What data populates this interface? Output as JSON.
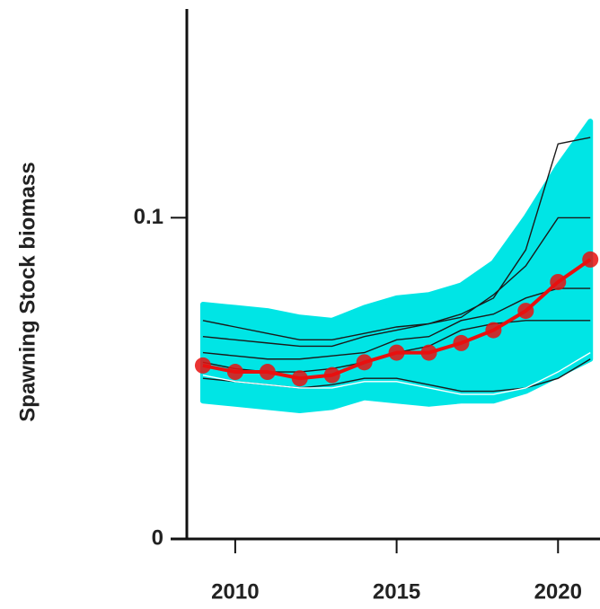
{
  "chart_data": {
    "type": "line",
    "y_label": "Spawning Stock biomass",
    "x": [
      2009,
      2010,
      2011,
      2012,
      2013,
      2014,
      2015,
      2016,
      2017,
      2018,
      2019,
      2020,
      2021
    ],
    "band": {
      "color": "#00e5e5",
      "upper": [
        0.073,
        0.072,
        0.071,
        0.069,
        0.068,
        0.072,
        0.075,
        0.076,
        0.079,
        0.086,
        0.1,
        0.116,
        0.13
      ],
      "lower": [
        0.043,
        0.042,
        0.041,
        0.04,
        0.041,
        0.044,
        0.043,
        0.042,
        0.043,
        0.043,
        0.046,
        0.051,
        0.056
      ]
    },
    "series": [
      {
        "color": "#1a1a1a",
        "values": [
          0.068,
          0.066,
          0.064,
          0.062,
          0.062,
          0.064,
          0.066,
          0.067,
          0.07,
          0.075,
          0.09,
          0.123,
          0.125
        ]
      },
      {
        "color": "#1a1a1a",
        "values": [
          0.063,
          0.062,
          0.061,
          0.06,
          0.06,
          0.063,
          0.065,
          0.067,
          0.069,
          0.076,
          0.085,
          0.1,
          0.1
        ]
      },
      {
        "color": "#1a1a1a",
        "values": [
          0.058,
          0.057,
          0.056,
          0.056,
          0.057,
          0.058,
          0.062,
          0.063,
          0.068,
          0.07,
          0.075,
          0.078,
          0.078
        ]
      },
      {
        "color": "#1a1a1a",
        "values": [
          0.055,
          0.053,
          0.052,
          0.052,
          0.053,
          0.055,
          0.058,
          0.06,
          0.065,
          0.067,
          0.068,
          0.068,
          0.068
        ]
      },
      {
        "color": "#1a1a1a",
        "values": [
          0.05,
          0.049,
          0.048,
          0.047,
          0.048,
          0.05,
          0.05,
          0.048,
          0.046,
          0.046,
          0.047,
          0.05,
          0.056
        ]
      },
      {
        "color": "#ffffff",
        "values": [
          0.051,
          0.049,
          0.048,
          0.047,
          0.047,
          0.049,
          0.049,
          0.047,
          0.045,
          0.045,
          0.047,
          0.052,
          0.058
        ]
      },
      {
        "color": "#e8100f",
        "markers": true,
        "values": [
          0.054,
          0.052,
          0.052,
          0.05,
          0.051,
          0.055,
          0.058,
          0.058,
          0.061,
          0.065,
          0.071,
          0.08,
          0.087
        ]
      }
    ],
    "xlim": [
      2008,
      2021.3
    ],
    "xticks": [
      2010,
      2015,
      2020
    ],
    "ylim": [
      0,
      0.165
    ],
    "yticks": [
      0,
      0.1
    ]
  }
}
